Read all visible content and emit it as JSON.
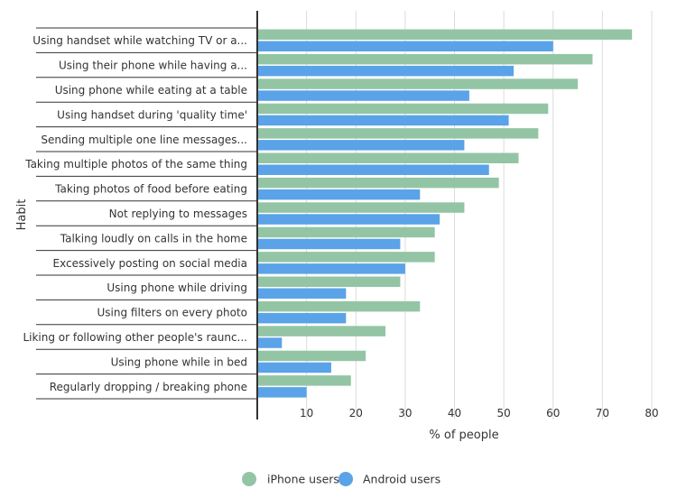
{
  "chart_data": {
    "type": "bar",
    "orientation": "horizontal",
    "xlabel": "% of people",
    "ylabel": "Habit",
    "xlim": [
      0,
      80
    ],
    "xticks": [
      10,
      20,
      30,
      40,
      50,
      60,
      70,
      80
    ],
    "grid": "vertical",
    "legend_position": "bottom",
    "categories": [
      "Using handset while watching TV or a...",
      "Using their phone while having a...",
      "Using phone while eating at a table",
      "Using handset during 'quality time'",
      "Sending multiple one line messages...",
      "Taking multiple photos of the same thing",
      "Taking photos of food before eating",
      "Not replying to messages",
      "Talking loudly on calls in the home",
      "Excessively posting on social media",
      "Using phone while driving",
      "Using filters on every photo",
      "Liking or following other people's raunc...",
      "Using phone while in bed",
      "Regularly dropping / breaking phone"
    ],
    "series": [
      {
        "name": "iPhone users",
        "color": "#93c5a5",
        "values": [
          76,
          68,
          65,
          59,
          57,
          53,
          49,
          42,
          36,
          36,
          29,
          33,
          26,
          22,
          19
        ]
      },
      {
        "name": "Android users",
        "color": "#5aa3e8",
        "values": [
          60,
          52,
          43,
          51,
          42,
          47,
          33,
          37,
          29,
          30,
          18,
          18,
          5,
          15,
          10
        ]
      }
    ]
  }
}
